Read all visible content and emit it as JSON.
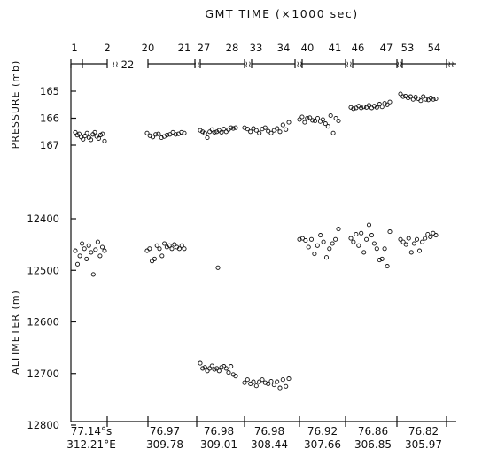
{
  "chart_data": {
    "type": "scatter",
    "title": "GMT TIME (×1000 sec)",
    "top_axis": {
      "labels": [
        "1",
        "2",
        "22",
        "20",
        "21",
        "27",
        "28",
        "33",
        "34",
        "40",
        "41",
        "46",
        "47",
        "53",
        "54"
      ],
      "break_mark": "≀≀"
    },
    "panels": [
      {
        "name": "pressure",
        "ylabel": "PRESSURE (mb)",
        "ylim": [
          164.7,
          167.4
        ],
        "inverted": true,
        "yticks": [
          "165",
          "166",
          "167"
        ],
        "groups": [
          {
            "segment": "1-2",
            "values": [
              166.52,
              166.63,
              166.58,
              166.7,
              166.78,
              166.66,
              166.55,
              166.72,
              166.8,
              166.6,
              166.52,
              166.68,
              166.75,
              166.62,
              166.58,
              166.85
            ]
          },
          {
            "segment": "20-21",
            "values": [
              166.55,
              166.65,
              166.7,
              166.6,
              166.58,
              166.72,
              166.68,
              166.62,
              166.6,
              166.52,
              166.6,
              166.58,
              166.52,
              166.55
            ]
          },
          {
            "segment": "27-28",
            "values": [
              166.45,
              166.5,
              166.55,
              166.72,
              166.5,
              166.42,
              166.52,
              166.5,
              166.45,
              166.52,
              166.4,
              166.5,
              166.42,
              166.35,
              166.38,
              166.35
            ]
          },
          {
            "segment": "33-34",
            "values": [
              166.35,
              166.4,
              166.5,
              166.38,
              166.45,
              166.55,
              166.4,
              166.35,
              166.48,
              166.55,
              166.45,
              166.38,
              166.5,
              166.25,
              166.42,
              166.15
            ]
          },
          {
            "segment": "40-41",
            "values": [
              166.05,
              165.95,
              166.15,
              166.0,
              165.98,
              166.08,
              166.1,
              166.0,
              166.12,
              166.05,
              166.2,
              166.3,
              165.9,
              166.55,
              166.0,
              166.1
            ]
          },
          {
            "segment": "46-47",
            "values": [
              165.6,
              165.65,
              165.62,
              165.55,
              165.62,
              165.58,
              165.6,
              165.52,
              165.62,
              165.55,
              165.6,
              165.48,
              165.58,
              165.45,
              165.5,
              165.4
            ]
          },
          {
            "segment": "53-54",
            "values": [
              165.1,
              165.2,
              165.18,
              165.25,
              165.2,
              165.3,
              165.22,
              165.28,
              165.35,
              165.2,
              165.3,
              165.32,
              165.25,
              165.3,
              165.28
            ]
          }
        ]
      },
      {
        "name": "altimeter",
        "ylabel": "ALTIMETER (m)",
        "ylim": [
          12380,
          12800
        ],
        "inverted": true,
        "yticks": [
          "12400",
          "12500",
          "12600",
          "12700",
          "12800"
        ],
        "groups": [
          {
            "segment": "1-2",
            "values": [
              12462,
              12488,
              12472,
              12448,
              12458,
              12478,
              12452,
              12465,
              12508,
              12460,
              12445,
              12472,
              12455,
              12462
            ]
          },
          {
            "segment": "20-21",
            "values": [
              12462,
              12458,
              12482,
              12478,
              12452,
              12458,
              12472,
              12448,
              12455,
              12452,
              12458,
              12450,
              12455,
              12458,
              12452,
              12458
            ]
          },
          {
            "segment": "27-28",
            "values": [
              12495
            ]
          },
          {
            "segment": "33-34",
            "values": []
          },
          {
            "segment": "40-41",
            "values": [
              12440,
              12438,
              12442,
              12455,
              12440,
              12468,
              12452,
              12432,
              12445,
              12475,
              12458,
              12448,
              12440,
              12420
            ]
          },
          {
            "segment": "46-47",
            "values": [
              12438,
              12445,
              12430,
              12452,
              12428,
              12465,
              12440,
              12412,
              12432,
              12448,
              12458,
              12480,
              12478,
              12458,
              12492,
              12425
            ]
          },
          {
            "segment": "53-54",
            "values": [
              12440,
              12445,
              12450,
              12438,
              12465,
              12448,
              12440,
              12462,
              12445,
              12438,
              12430,
              12435,
              12428,
              12432
            ]
          }
        ],
        "low_groups": [
          {
            "segment": "27-28",
            "values": [
              12680,
              12690,
              12688,
              12695,
              12690,
              12685,
              12692,
              12690,
              12695,
              12688,
              12686,
              12690,
              12698,
              12686,
              12702,
              12705
            ]
          },
          {
            "segment": "33-34",
            "values": [
              12718,
              12712,
              12720,
              12716,
              12724,
              12716,
              12712,
              12718,
              12720,
              12715,
              12722,
              12716,
              12728,
              12712,
              12725,
              12710
            ]
          }
        ]
      }
    ],
    "bottom_labels": {
      "latitude": [
        "77.14°s",
        "76.97",
        "76.98",
        "76.98",
        "76.92",
        "76.86",
        "76.82"
      ],
      "longitude": [
        "312.21°E",
        "309.78",
        "309.01",
        "308.44",
        "307.66",
        "306.85",
        "305.97"
      ]
    }
  }
}
